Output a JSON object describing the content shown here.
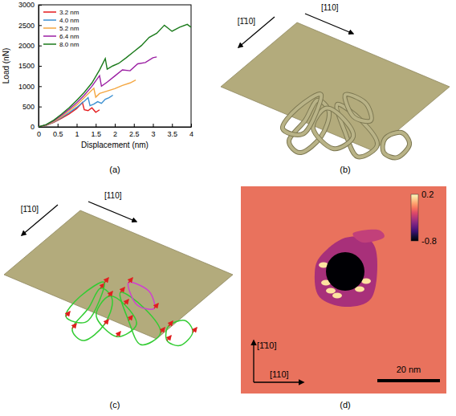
{
  "chart_data": {
    "type": "line",
    "x_label": "Displacement (nm)",
    "y_label": "Load (nN)",
    "xlim": [
      0,
      4
    ],
    "ylim": [
      0,
      3000
    ],
    "xticks": [
      0,
      0.5,
      1,
      1.5,
      2,
      2.5,
      3,
      3.5,
      4
    ],
    "yticks": [
      0,
      500,
      1000,
      1500,
      2000,
      2500,
      3000
    ],
    "grid": false,
    "legend": "upper left",
    "series": [
      {
        "name": "3.2 nm",
        "color": "#e41a1c",
        "x": [
          0,
          0.2,
          0.4,
          0.6,
          0.8,
          1.0,
          1.15,
          1.2,
          1.3,
          1.4,
          1.5,
          1.6
        ],
        "values": [
          0,
          40,
          110,
          210,
          320,
          450,
          600,
          420,
          400,
          470,
          360,
          420
        ]
      },
      {
        "name": "4.0 nm",
        "color": "#3a8fd0",
        "x": [
          0,
          0.2,
          0.4,
          0.6,
          0.8,
          1.0,
          1.2,
          1.3,
          1.35,
          1.45,
          1.55,
          1.65,
          1.75,
          1.85,
          1.95
        ],
        "values": [
          0,
          40,
          120,
          230,
          350,
          480,
          630,
          720,
          520,
          560,
          620,
          580,
          680,
          720,
          780
        ]
      },
      {
        "name": "5.2 nm",
        "color": "#f4a742",
        "x": [
          0,
          0.2,
          0.4,
          0.6,
          0.8,
          1.0,
          1.2,
          1.45,
          1.5,
          1.6,
          1.8,
          2.0,
          2.2,
          2.4,
          2.55
        ],
        "values": [
          0,
          45,
          130,
          250,
          390,
          540,
          720,
          950,
          730,
          820,
          880,
          940,
          1020,
          1080,
          1150
        ]
      },
      {
        "name": "6.4 nm",
        "color": "#9b1fa3",
        "x": [
          0,
          0.2,
          0.4,
          0.6,
          0.8,
          1.0,
          1.2,
          1.4,
          1.6,
          1.65,
          1.8,
          2.0,
          2.2,
          2.4,
          2.6,
          2.8,
          3.0,
          3.1
        ],
        "values": [
          0,
          50,
          150,
          280,
          430,
          590,
          780,
          1000,
          1260,
          1000,
          1100,
          1250,
          1400,
          1380,
          1550,
          1580,
          1700,
          1720
        ]
      },
      {
        "name": "8.0 nm",
        "color": "#1a7a1a",
        "x": [
          0,
          0.2,
          0.4,
          0.6,
          0.8,
          1.0,
          1.2,
          1.4,
          1.6,
          1.75,
          1.8,
          1.95,
          2.1,
          2.3,
          2.5,
          2.7,
          2.9,
          3.1,
          3.3,
          3.5,
          3.7,
          3.9,
          4.0
        ],
        "values": [
          0,
          55,
          165,
          310,
          470,
          650,
          850,
          1080,
          1400,
          1680,
          1420,
          1500,
          1560,
          1700,
          1850,
          2000,
          2200,
          2300,
          2500,
          2350,
          2450,
          2520,
          2450
        ]
      }
    ]
  },
  "panel_labels": [
    "(a)",
    "(b)",
    "(c)",
    "(d)"
  ],
  "panel_b": {
    "directions": [
      "[1̄10]",
      "[110]"
    ]
  },
  "panel_c": {
    "directions": [
      "[1̄10]",
      "[110]"
    ]
  },
  "panel_d": {
    "directions": [
      "[1̄10]",
      "[110]"
    ],
    "colorbar": {
      "range": [
        -0.8,
        0.2
      ],
      "ticks": [
        0.2,
        -0.8
      ]
    },
    "scale_bar": "20 nm"
  }
}
